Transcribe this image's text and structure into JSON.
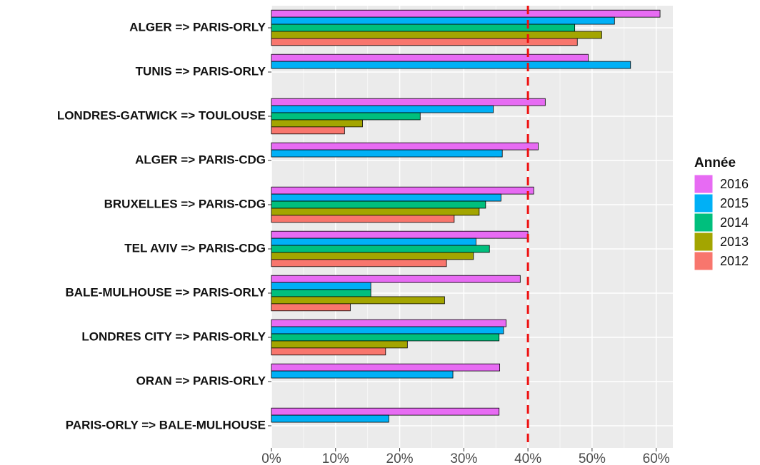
{
  "chart_data": {
    "type": "hbar",
    "categories": [
      "ALGER => PARIS-ORLY",
      "TUNIS => PARIS-ORLY",
      "LONDRES-GATWICK => TOULOUSE",
      "ALGER => PARIS-CDG",
      "BRUXELLES => PARIS-CDG",
      "TEL AVIV => PARIS-CDG",
      "BALE-MULHOUSE => PARIS-ORLY",
      "LONDRES CITY => PARIS-ORLY",
      "ORAN => PARIS-ORLY",
      "PARIS-ORLY => BALE-MULHOUSE"
    ],
    "legend_title": "Année",
    "series": [
      {
        "name": "2016",
        "color": "#e76bf3",
        "values": [
          60.6,
          49.4,
          42.7,
          41.6,
          40.9,
          40.0,
          38.8,
          36.6,
          35.6,
          35.5
        ]
      },
      {
        "name": "2015",
        "color": "#00b0f6",
        "values": [
          53.5,
          56.0,
          34.6,
          36.0,
          35.8,
          31.9,
          15.5,
          36.2,
          28.3,
          18.3
        ]
      },
      {
        "name": "2014",
        "color": "#00bf7d",
        "values": [
          47.3,
          null,
          23.2,
          null,
          33.4,
          34.0,
          15.5,
          35.5,
          null,
          null
        ]
      },
      {
        "name": "2013",
        "color": "#a3a500",
        "values": [
          51.5,
          null,
          14.2,
          null,
          32.4,
          31.5,
          27.0,
          21.2,
          null,
          null
        ]
      },
      {
        "name": "2012",
        "color": "#f8766d",
        "values": [
          47.7,
          null,
          11.4,
          null,
          28.5,
          27.3,
          12.3,
          17.8,
          null,
          null
        ]
      }
    ],
    "xlim": [
      0,
      62.6
    ],
    "xticks": [
      {
        "value": 0,
        "label": "0%"
      },
      {
        "value": 10,
        "label": "10%"
      },
      {
        "value": 20,
        "label": "20%"
      },
      {
        "value": 30,
        "label": "30%"
      },
      {
        "value": 40,
        "label": "40%"
      },
      {
        "value": 50,
        "label": "50%"
      },
      {
        "value": 60,
        "label": "60%"
      }
    ],
    "reference_line": 40,
    "reference_color": "#ee1111",
    "grid": true
  }
}
